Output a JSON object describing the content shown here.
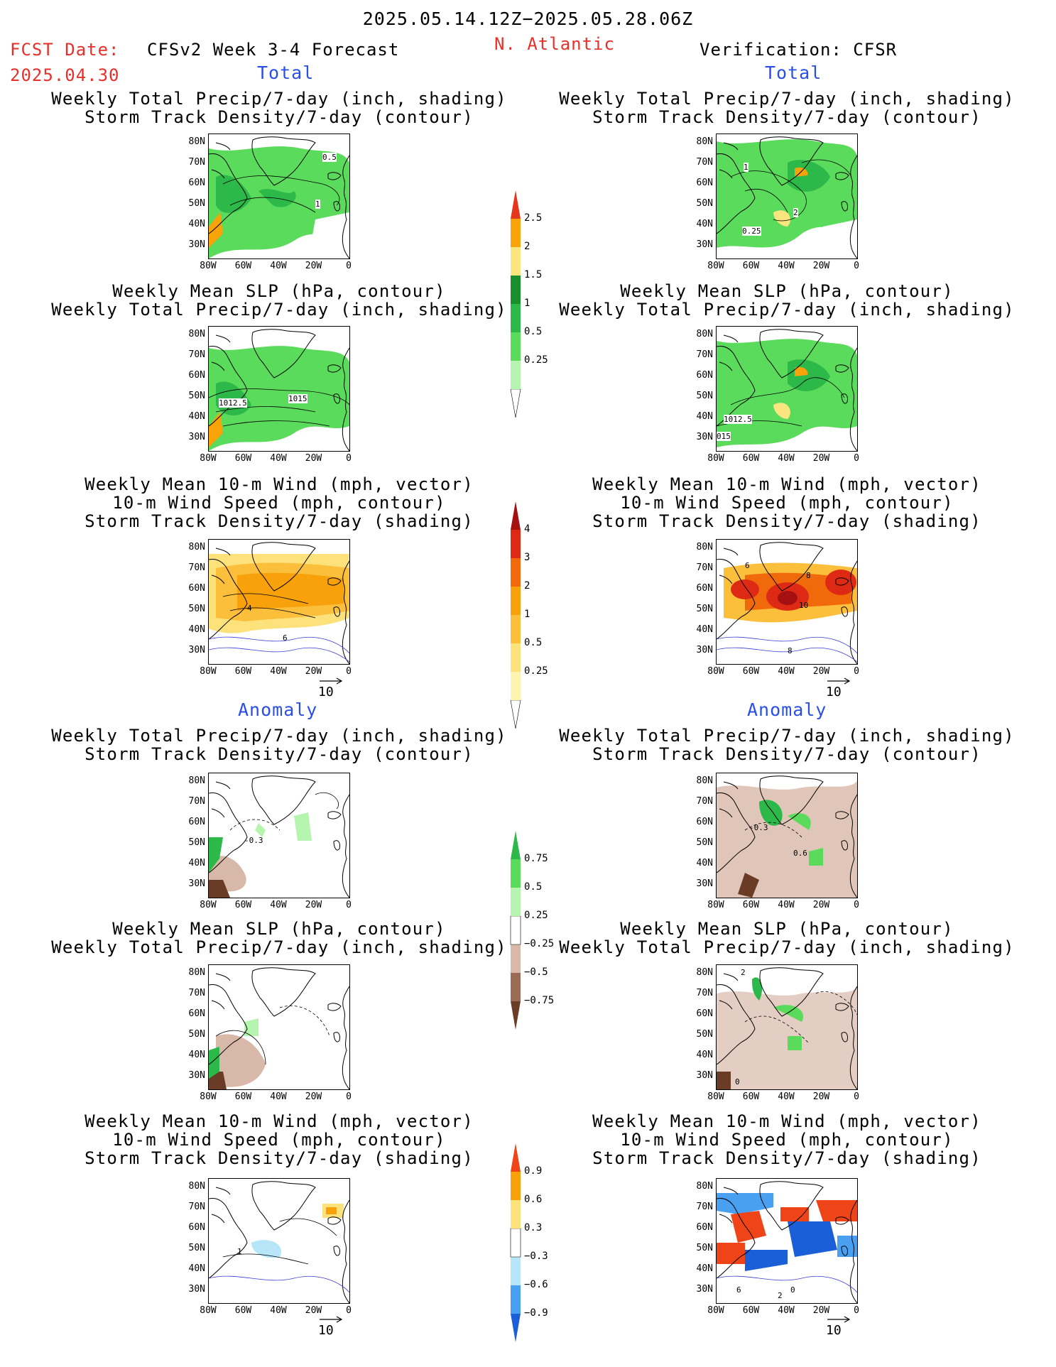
{
  "header": {
    "period": "2025.05.14.12Z−2025.05.28.06Z",
    "fcst_label": "FCST Date:",
    "fcst_date": "2025.04.30",
    "model": "CFSv2 Week 3-4 Forecast",
    "region": "N. Atlantic",
    "verification": "Verification: CFSR"
  },
  "sections": {
    "total": "Total",
    "anomaly": "Anomaly"
  },
  "titles": {
    "precip_std": [
      "Weekly Total Precip/7-day (inch, shading)",
      "Storm Track Density/7-day (contour)"
    ],
    "slp_precip": [
      "Weekly Mean SLP (hPa, contour)",
      "Weekly Total Precip/7-day (inch, shading)"
    ],
    "wind_std": [
      "Weekly Mean 10-m Wind (mph, vector)",
      "10-m Wind Speed (mph, contour)",
      "Storm Track Density/7-day (shading)"
    ]
  },
  "axes": {
    "lat_ticks": [
      "80N",
      "70N",
      "60N",
      "50N",
      "40N",
      "30N"
    ],
    "lon_ticks": [
      "80W",
      "60W",
      "40W",
      "20W",
      "0"
    ]
  },
  "vector_ref": "10",
  "map_labels": {
    "fcst_total_precip": [
      "0.5",
      "1"
    ],
    "obs_total_precip": [
      "1",
      "2",
      "0.25"
    ],
    "fcst_total_slp": [
      "1012.5",
      "1015"
    ],
    "obs_total_slp": [
      "1012.5",
      "015"
    ],
    "fcst_total_wind": [
      "4",
      "6"
    ],
    "obs_total_wind": [
      "8",
      "10",
      "6",
      "8"
    ],
    "fcst_anom_precip": [
      "-0.3"
    ],
    "obs_anom_precip": [
      "-0.3",
      "0.6"
    ],
    "obs_anom_slp": [
      "2",
      "0"
    ],
    "fcst_anom_wind": [
      "1"
    ],
    "obs_anom_wind": [
      "6",
      "2",
      "0"
    ]
  },
  "colorbars": {
    "precip_total": {
      "labels": [
        "2.5",
        "2",
        "1.5",
        "1",
        "0.5",
        "0.25"
      ],
      "colors": [
        "#ffffff",
        "#b6f5b0",
        "#5bdb5b",
        "#2db84a",
        "#188f2a",
        "#fbe57e",
        "#f8a30a",
        "#e5371c"
      ]
    },
    "std_total": {
      "labels": [
        "4",
        "3",
        "2",
        "1",
        "0.5",
        "0.25"
      ],
      "colors": [
        "#ffffff",
        "#fff5b0",
        "#fde27c",
        "#fbbf3c",
        "#f8a10a",
        "#f06a0c",
        "#de2a14",
        "#a51010"
      ]
    },
    "precip_anom": {
      "labels": [
        "0.75",
        "0.5",
        "0.25",
        "−0.25",
        "−0.5",
        "−0.75"
      ],
      "colors": [
        "#6a3b25",
        "#9c6b55",
        "#d8b8a8",
        "#ffffff",
        "#b6f5b0",
        "#5bdb5b",
        "#2db84a"
      ]
    },
    "std_anom": {
      "labels": [
        "0.9",
        "0.6",
        "0.3",
        "−0.3",
        "−0.6",
        "−0.9"
      ],
      "colors": [
        "#1b5fd8",
        "#4aa0f0",
        "#b6e6f8",
        "#ffffff",
        "#fde27c",
        "#f8a10a",
        "#ef4418"
      ]
    }
  },
  "colors": {
    "red_text": "#e8302a",
    "blue_text": "#2a4ee8"
  }
}
